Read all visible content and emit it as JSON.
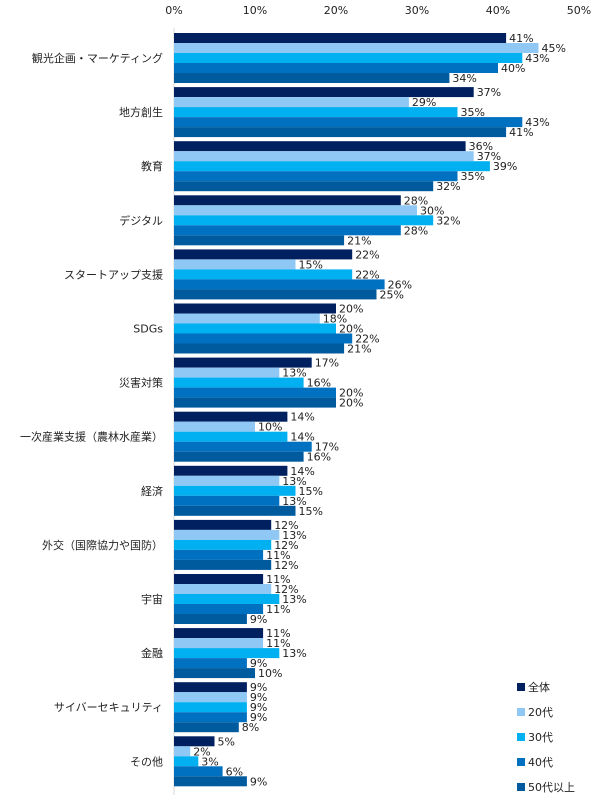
{
  "chart_data": {
    "type": "bar",
    "orientation": "horizontal",
    "title": "",
    "xlabel": "",
    "ylabel": "",
    "xlim": [
      0,
      50
    ],
    "x_ticks": [
      "0%",
      "10%",
      "20%",
      "30%",
      "40%",
      "50%"
    ],
    "x_tick_values": [
      0,
      10,
      20,
      30,
      40,
      50
    ],
    "x_axis_position": "top",
    "grid": false,
    "legend_position": "bottom-right",
    "value_suffix": "%",
    "categories": [
      "観光企画・マーケティング",
      "地方創生",
      "教育",
      "デジタル",
      "スタートアップ支援",
      "SDGs",
      "災害対策",
      "一次産業支援（農林水産業）",
      "経済",
      "外交（国際協力や国防）",
      "宇宙",
      "金融",
      "サイバーセキュリティ",
      "その他"
    ],
    "series": [
      {
        "name": "全体",
        "color": "#002060",
        "values": [
          41,
          37,
          36,
          28,
          22,
          20,
          17,
          14,
          14,
          12,
          11,
          11,
          9,
          5
        ]
      },
      {
        "name": "20代",
        "color": "#8FC8F5",
        "values": [
          45,
          29,
          37,
          30,
          15,
          18,
          13,
          10,
          13,
          13,
          12,
          11,
          9,
          2
        ]
      },
      {
        "name": "30代",
        "color": "#00B0F0",
        "values": [
          43,
          35,
          39,
          32,
          22,
          20,
          16,
          14,
          15,
          12,
          13,
          13,
          9,
          3
        ]
      },
      {
        "name": "40代",
        "color": "#0070C0",
        "values": [
          40,
          43,
          35,
          28,
          26,
          22,
          20,
          17,
          13,
          11,
          11,
          9,
          9,
          6
        ]
      },
      {
        "name": "50代以上",
        "color": "#005A9E",
        "values": [
          34,
          41,
          32,
          21,
          25,
          21,
          20,
          16,
          15,
          12,
          9,
          10,
          8,
          9
        ]
      }
    ]
  }
}
